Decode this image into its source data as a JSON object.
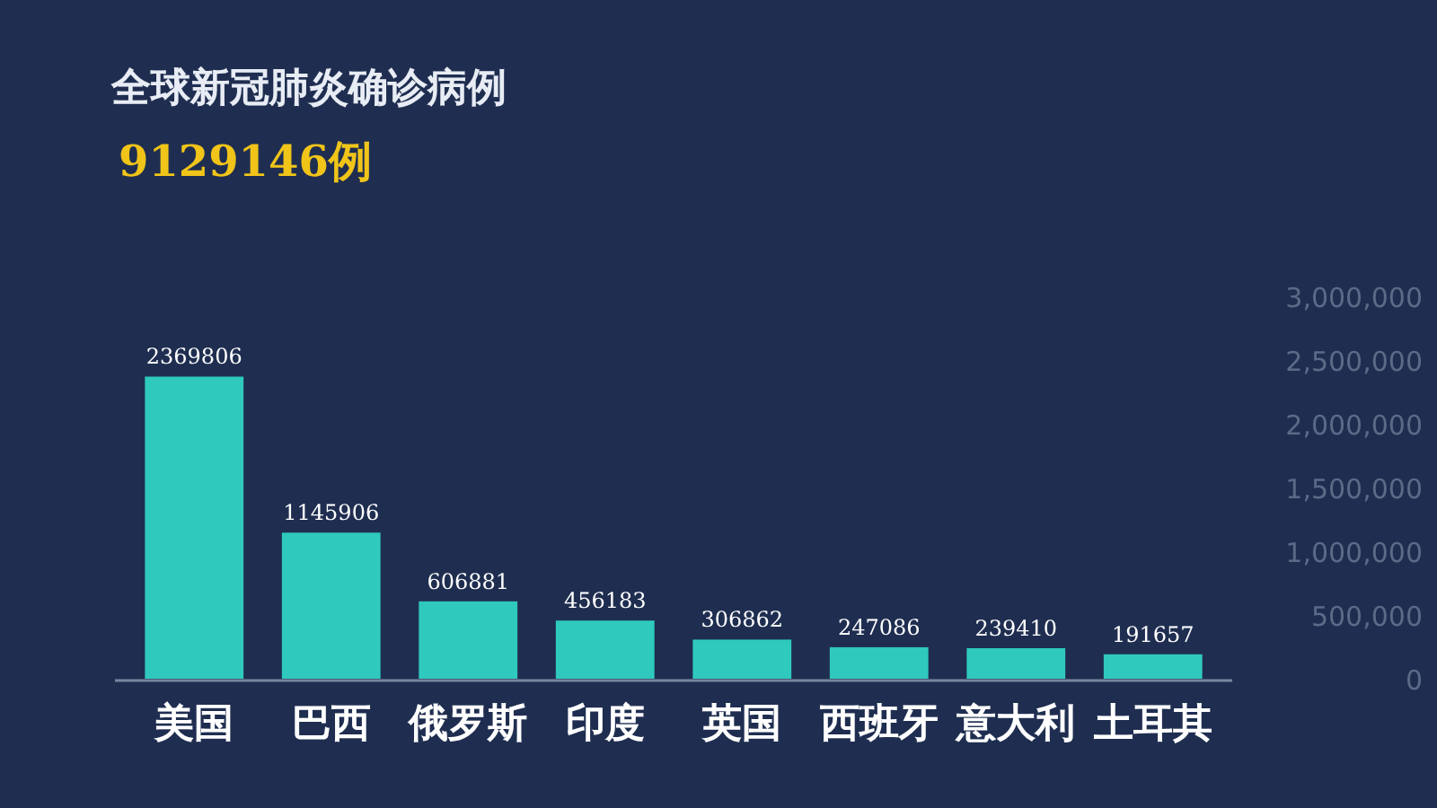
{
  "chart_data": {
    "type": "bar",
    "title": "全球新冠肺炎确诊病例",
    "subtitle": "9129146例",
    "categories": [
      "美国",
      "巴西",
      "俄罗斯",
      "印度",
      "英国",
      "西班牙",
      "意大利",
      "土耳其"
    ],
    "values": [
      2369806,
      1145906,
      606881,
      456183,
      306862,
      247086,
      239410,
      191657
    ],
    "color": "#2fc9bd",
    "data_labels": true,
    "grid": false,
    "ylim": [
      0,
      3000000
    ],
    "yticks": [
      0,
      {
        "value": 500000,
        "label": "500,000"
      },
      {
        "value": 1000000,
        "label": "1,000,000"
      },
      {
        "value": 1500000,
        "label": "1,500,000"
      },
      {
        "value": 2000000,
        "label": "2,000,000"
      },
      {
        "value": 2500000,
        "label": "2,500,000"
      },
      {
        "value": 3000000,
        "label": "3,000,000"
      }
    ]
  }
}
